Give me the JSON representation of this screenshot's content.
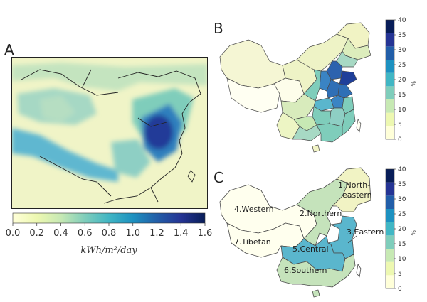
{
  "panels": {
    "a": {
      "letter": "A"
    },
    "b": {
      "letter": "B"
    },
    "c": {
      "letter": "C"
    }
  },
  "panel_a_colorbar": {
    "ticks": [
      "0.0",
      "0.2",
      "0.4",
      "0.6",
      "0.8",
      "1.0",
      "1.2",
      "1.4",
      "1.6"
    ],
    "unit": "kWh/m²/day",
    "colors": [
      "#ffffd9",
      "#edf8b1",
      "#c7e9b4",
      "#7fcdbb",
      "#41b6c4",
      "#1d91c0",
      "#225ea8",
      "#253494",
      "#081d58"
    ]
  },
  "panel_b_colorbar": {
    "ticks": [
      "0",
      "5",
      "10",
      "15",
      "20",
      "25",
      "30",
      "35",
      "40"
    ],
    "unit": "%",
    "colors": [
      "#ffffd9",
      "#edf8b1",
      "#c7e9b4",
      "#7fcdbb",
      "#41b6c4",
      "#1d91c0",
      "#225ea8",
      "#253494",
      "#081d58"
    ]
  },
  "panel_c_colorbar": {
    "ticks": [
      "0",
      "5",
      "10",
      "15",
      "20",
      "25",
      "30",
      "35",
      "40"
    ],
    "unit": "%",
    "colors": [
      "#ffffd9",
      "#edf8b1",
      "#c7e9b4",
      "#7fcdbb",
      "#41b6c4",
      "#1d91c0",
      "#225ea8",
      "#253494",
      "#081d58"
    ]
  },
  "regions": [
    {
      "label": "1.North-\neastern",
      "color": "#f1f3c4"
    },
    {
      "label": "2.Northern",
      "color": "#c5e3bb"
    },
    {
      "label": "3.Eastern",
      "color": "#5ab6cd"
    },
    {
      "label": "4.Western",
      "color": "#ffffee"
    },
    {
      "label": "5.Central",
      "color": "#5ab6cd"
    },
    {
      "label": "6.Southern",
      "color": "#c5e3bb"
    },
    {
      "label": "7.Tibetan",
      "color": "#ffffee"
    }
  ]
}
